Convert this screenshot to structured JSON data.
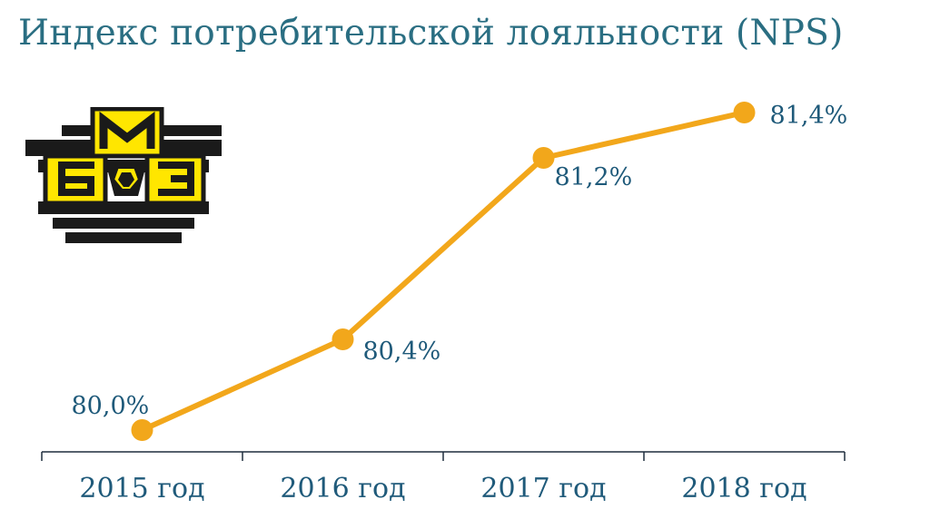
{
  "title": "Индекс потребительской лояльности (NPS)",
  "logo": {
    "name": "company-logo",
    "letters": "БМЗ"
  },
  "colors": {
    "title": "#2a6e82",
    "line": "#f2a71b",
    "marker": "#f2a71b",
    "label": "#1f5a7a",
    "axis": "#1f2d3d",
    "logo_dark": "#1a1a1a",
    "logo_yellow": "#ffe600"
  },
  "chart_data": {
    "type": "line",
    "title": "Индекс потребительской лояльности (NPS)",
    "categories": [
      "2015 год",
      "2016 год",
      "2017 год",
      "2018 год"
    ],
    "values": [
      80.0,
      80.4,
      81.2,
      81.4
    ],
    "data_labels": [
      "80,0%",
      "80,4%",
      "81,2%",
      "81,4%"
    ],
    "xlabel": "",
    "ylabel": "",
    "ylim": [
      80.0,
      81.4
    ],
    "grid": false,
    "legend": "none",
    "markers": true
  }
}
